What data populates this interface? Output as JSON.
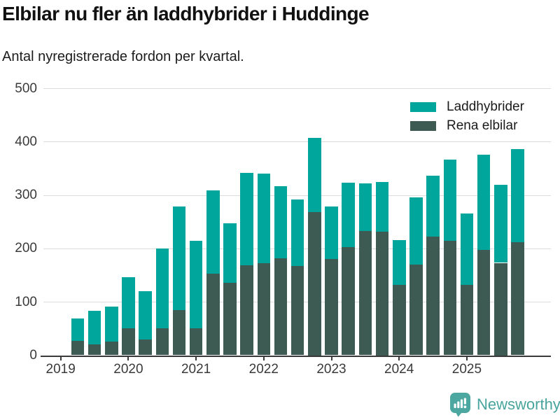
{
  "header": {
    "title": "Elbilar nu fler än laddhybrider i Huddinge",
    "subtitle": "Antal nyregistrerade fordon per kvartal."
  },
  "legend": [
    {
      "label": "Laddhybrider",
      "color": "#00a69b"
    },
    {
      "label": "Rena elbilar",
      "color": "#3d5b53"
    }
  ],
  "footer": {
    "brand": "Newsworthy",
    "brand_color": "#49a49d",
    "logo_icon": "newsworthy-speech-bubble-chart-icon"
  },
  "chart_data": {
    "type": "bar",
    "stacked": true,
    "title": "Elbilar nu fler än laddhybrider i Huddinge",
    "subtitle": "Antal nyregistrerade fordon per kvartal.",
    "x": [
      "2019Q2",
      "2019Q3",
      "2019Q4",
      "2020Q1",
      "2020Q2",
      "2020Q3",
      "2020Q4",
      "2021Q1",
      "2021Q2",
      "2021Q3",
      "2021Q4",
      "2022Q1",
      "2022Q2",
      "2022Q3",
      "2022Q4",
      "2023Q1",
      "2023Q2",
      "2023Q3",
      "2023Q4",
      "2024Q1",
      "2024Q2",
      "2024Q3",
      "2024Q4",
      "2025Q1",
      "2025Q2",
      "2025Q3",
      "2025Q4"
    ],
    "x_tick_labels": [
      "2019",
      "2020",
      "2021",
      "2022",
      "2023",
      "2024",
      "2025"
    ],
    "series": [
      {
        "name": "Rena elbilar",
        "color": "#3d5b53",
        "values": [
          27,
          20,
          25,
          50,
          29,
          51,
          84,
          51,
          153,
          136,
          168,
          172,
          182,
          167,
          268,
          180,
          202,
          233,
          232,
          132,
          170,
          222,
          214,
          132,
          197,
          173,
          212
        ]
      },
      {
        "name": "Laddhybrider",
        "color": "#00a69b",
        "values": [
          42,
          63,
          66,
          96,
          91,
          149,
          195,
          164,
          156,
          111,
          173,
          168,
          135,
          125,
          139,
          99,
          121,
          89,
          93,
          84,
          126,
          114,
          152,
          133,
          179,
          146,
          174
        ]
      }
    ],
    "stacked_totals": [
      69,
      83,
      91,
      146,
      120,
      200,
      279,
      215,
      309,
      247,
      341,
      340,
      317,
      292,
      407,
      279,
      323,
      322,
      325,
      216,
      296,
      336,
      366,
      265,
      376,
      319,
      386
    ],
    "ylabel": "",
    "xlabel": "",
    "ylim": [
      0,
      500
    ],
    "yticks": [
      0,
      100,
      200,
      300,
      400,
      500
    ],
    "grid": true,
    "legend_position": "top-right"
  }
}
